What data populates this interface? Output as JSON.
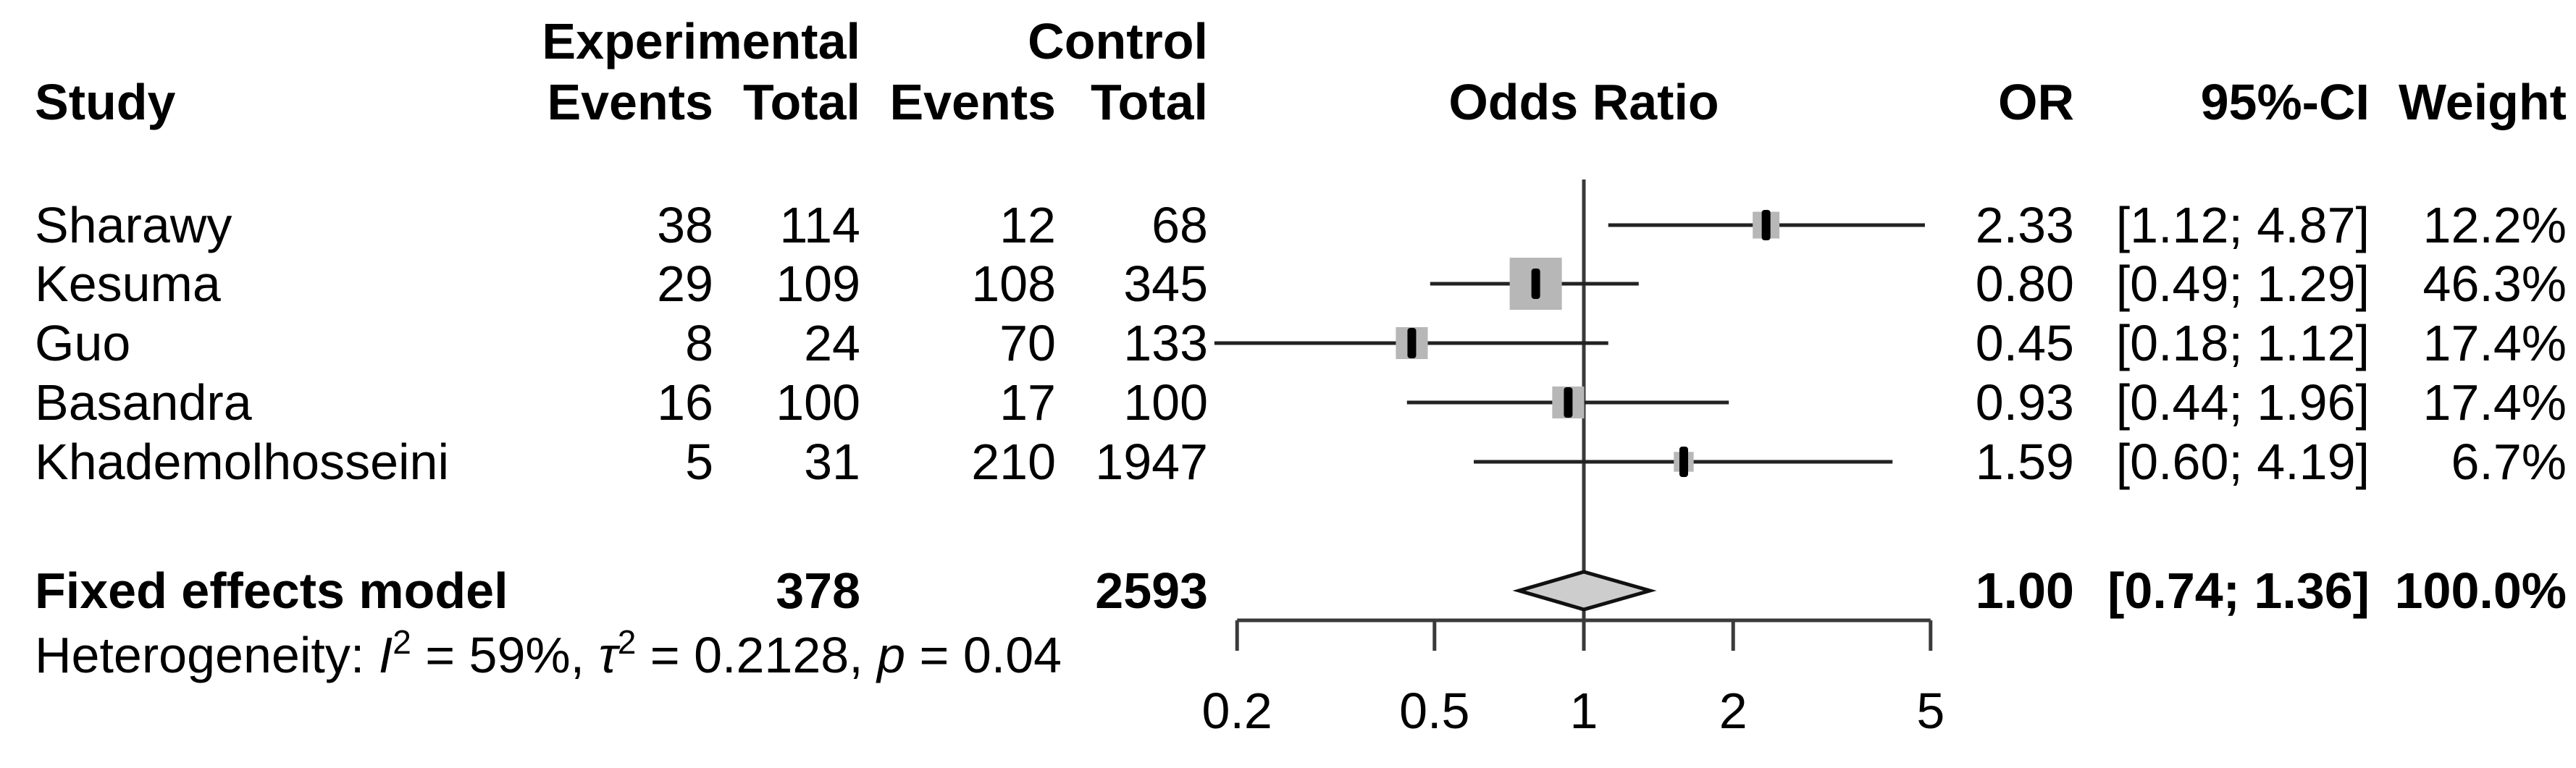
{
  "header": {
    "study": "Study",
    "group_experimental": "Experimental",
    "group_control": "Control",
    "events": "Events",
    "total": "Total",
    "odds_ratio_plot": "Odds Ratio",
    "or": "OR",
    "ci": "95%-CI",
    "weight": "Weight"
  },
  "studies": [
    {
      "name": "Sharawy",
      "exp_events": "38",
      "exp_total": "114",
      "ctrl_events": "12",
      "ctrl_total": "68",
      "or": "2.33",
      "ci": "[1.12; 4.87]",
      "weight": "12.2%"
    },
    {
      "name": "Kesuma",
      "exp_events": "29",
      "exp_total": "109",
      "ctrl_events": "108",
      "ctrl_total": "345",
      "or": "0.80",
      "ci": "[0.49; 1.29]",
      "weight": "46.3%"
    },
    {
      "name": "Guo",
      "exp_events": "8",
      "exp_total": "24",
      "ctrl_events": "70",
      "ctrl_total": "133",
      "or": "0.45",
      "ci": "[0.18; 1.12]",
      "weight": "17.4%"
    },
    {
      "name": "Basandra",
      "exp_events": "16",
      "exp_total": "100",
      "ctrl_events": "17",
      "ctrl_total": "100",
      "or": "0.93",
      "ci": "[0.44; 1.96]",
      "weight": "17.4%"
    },
    {
      "name": "Khademolhosseini",
      "exp_events": "5",
      "exp_total": "31",
      "ctrl_events": "210",
      "ctrl_total": "1947",
      "or": "1.59",
      "ci": "[0.60; 4.19]",
      "weight": "6.7%"
    }
  ],
  "summary": {
    "label": "Fixed effects model",
    "exp_total": "378",
    "ctrl_total": "2593",
    "or": "1.00",
    "ci": "[0.74; 1.36]",
    "weight": "100.0%"
  },
  "heterogeneity": {
    "prefix": "Heterogeneity: ",
    "i_sym": "I",
    "i_sup": "2",
    "seg1": " = 59%, ",
    "tau_sym": "τ",
    "tau_sup": "2",
    "seg2": " = 0.2128, ",
    "p_sym": "p",
    "seg3": " = 0.04"
  },
  "axis": {
    "tick_labels": [
      "0.2",
      "0.5",
      "1",
      "2",
      "5"
    ]
  },
  "colors": {
    "square": "#b7b7b7",
    "diamond_fill": "#cdcdcd",
    "diamond_stroke": "#111111",
    "ci_line": "#222222",
    "axis_line": "#3a3a3a",
    "point_tick": "#000000"
  },
  "chart_data": {
    "type": "forest",
    "effect_measure": "Odds Ratio",
    "model": "Fixed effects",
    "x_scale": "log",
    "xlim": [
      0.2,
      5
    ],
    "ticks": [
      0.2,
      0.5,
      1,
      2,
      5
    ],
    "null_line": 1,
    "series": [
      {
        "study": "Sharawy",
        "or": 2.33,
        "ci_low": 1.12,
        "ci_high": 4.87,
        "weight_pct": 12.2
      },
      {
        "study": "Kesuma",
        "or": 0.8,
        "ci_low": 0.49,
        "ci_high": 1.29,
        "weight_pct": 46.3
      },
      {
        "study": "Guo",
        "or": 0.45,
        "ci_low": 0.18,
        "ci_high": 1.12,
        "weight_pct": 17.4
      },
      {
        "study": "Basandra",
        "or": 0.93,
        "ci_low": 0.44,
        "ci_high": 1.96,
        "weight_pct": 17.4
      },
      {
        "study": "Khademolhosseini",
        "or": 1.59,
        "ci_low": 0.6,
        "ci_high": 4.19,
        "weight_pct": 6.7
      }
    ],
    "summary": {
      "or": 1.0,
      "ci_low": 0.74,
      "ci_high": 1.36,
      "weight_pct": 100.0
    },
    "heterogeneity": {
      "I2": "59%",
      "tau2": 0.2128,
      "p": 0.04
    }
  }
}
